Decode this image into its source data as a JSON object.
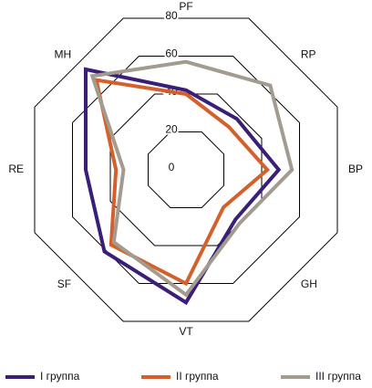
{
  "chart_data": {
    "type": "radar",
    "categories": [
      "PF",
      "RP",
      "BP",
      "GH",
      "VT",
      "SF",
      "RE",
      "MH"
    ],
    "series": [
      {
        "name": "I группа",
        "color": "#3a1f78",
        "values": [
          42,
          38,
          49,
          37,
          70,
          61,
          53,
          75
        ]
      },
      {
        "name": "II группа",
        "color": "#d4612b",
        "values": [
          40,
          32,
          43,
          28,
          60,
          56,
          37,
          67
        ]
      },
      {
        "name": "III группа",
        "color": "#a39a90",
        "values": [
          57,
          63,
          56,
          40,
          66,
          54,
          33,
          70
        ]
      }
    ],
    "ylim": [
      0,
      80
    ],
    "yticks": [
      0,
      20,
      40,
      60,
      80
    ],
    "grid": true,
    "legend": "bottom"
  }
}
